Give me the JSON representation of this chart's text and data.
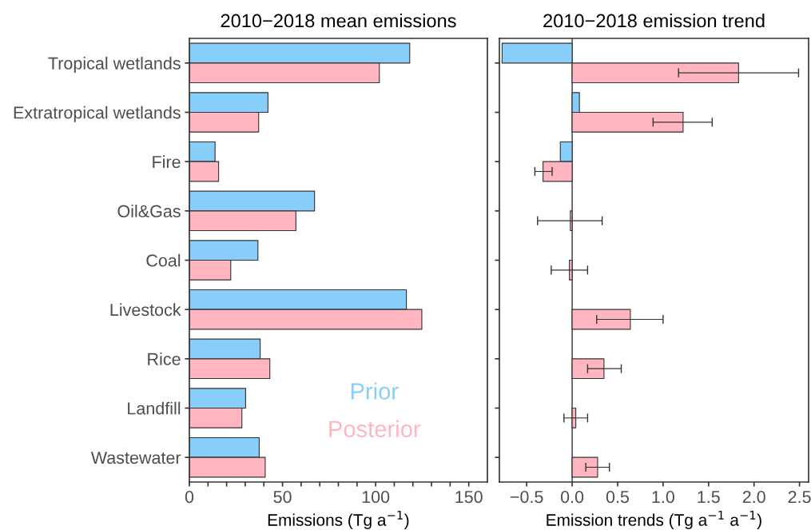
{
  "chart_data": [
    {
      "type": "bar",
      "orientation": "horizontal",
      "title": "2010−2018 mean emissions",
      "xlabel": "Emissions (Tg a$^{−1}$)",
      "categories": [
        "Tropical wetlands",
        "Extratropical wetlands",
        "Fire",
        "Oil&Gas",
        "Coal",
        "Livestock",
        "Rice",
        "Landfill",
        "Wastewater"
      ],
      "series": [
        {
          "name": "Prior",
          "color": "#87cefa",
          "values": [
            118.3,
            42.2,
            13.8,
            67.2,
            36.8,
            116.5,
            38,
            30.2,
            37.5
          ]
        },
        {
          "name": "Posterior",
          "color": "#ffb6c1",
          "values": [
            102,
            37.2,
            15.7,
            57.2,
            22.2,
            124.8,
            43.2,
            28.2,
            40.7
          ]
        }
      ],
      "xlim": [
        0,
        160
      ],
      "xticks": [
        0,
        {
          "value": 10,
          "label": null
        },
        {
          "value": 20,
          "label": null
        },
        {
          "value": 30,
          "label": null
        },
        {
          "value": 40,
          "label": null
        },
        50,
        {
          "value": 60,
          "label": null
        },
        {
          "value": 70,
          "label": null
        },
        {
          "value": 80,
          "label": null
        },
        {
          "value": 90,
          "label": null
        },
        100,
        {
          "value": 110,
          "label": null
        },
        {
          "value": 120,
          "label": null
        },
        {
          "value": 130,
          "label": null
        },
        {
          "value": 140,
          "label": null
        },
        150
      ],
      "grid": false,
      "legend": "bottom right"
    },
    {
      "type": "bar",
      "orientation": "horizontal",
      "title": "2010−2018 emission trend",
      "xlabel": "Emission trends (Tg a$^{−1}$ a$^{−1}$)",
      "categories": [
        null,
        null,
        null,
        null,
        null,
        null,
        null,
        null,
        null
      ],
      "series": [
        {
          "color": "#87cefa",
          "values": [
            -0.77,
            0.08,
            -0.13,
            null,
            null,
            null,
            null,
            null,
            null
          ]
        },
        {
          "color": "#ffb6c1",
          "values": [
            1.83,
            1.22,
            -0.32,
            -0.02,
            -0.03,
            0.64,
            0.35,
            0.04,
            0.28
          ],
          "errors": [
            [
              1.17,
              2.49
            ],
            [
              0.89,
              1.54
            ],
            [
              -0.41,
              -0.22
            ],
            [
              -0.38,
              0.33
            ],
            [
              -0.23,
              0.17
            ],
            [
              0.27,
              1.0
            ],
            [
              0.17,
              0.54
            ],
            [
              -0.09,
              0.17
            ],
            [
              0.15,
              0.41
            ]
          ]
        }
      ],
      "xlim": [
        -0.8,
        2.6
      ],
      "xticks": [
        {
          "value": -0.5,
          "label": "−0.5"
        },
        {
          "value": 0,
          "label": "0.0"
        },
        0.5,
        {
          "value": 1,
          "label": "1.0"
        },
        1.5,
        {
          "value": 2,
          "label": "2.0"
        },
        2.5
      ],
      "ref_lines": [
        {
          "axis": "x",
          "value": 0,
          "color": "#000000"
        }
      ],
      "tick_labels": "x",
      "grid": false
    }
  ]
}
